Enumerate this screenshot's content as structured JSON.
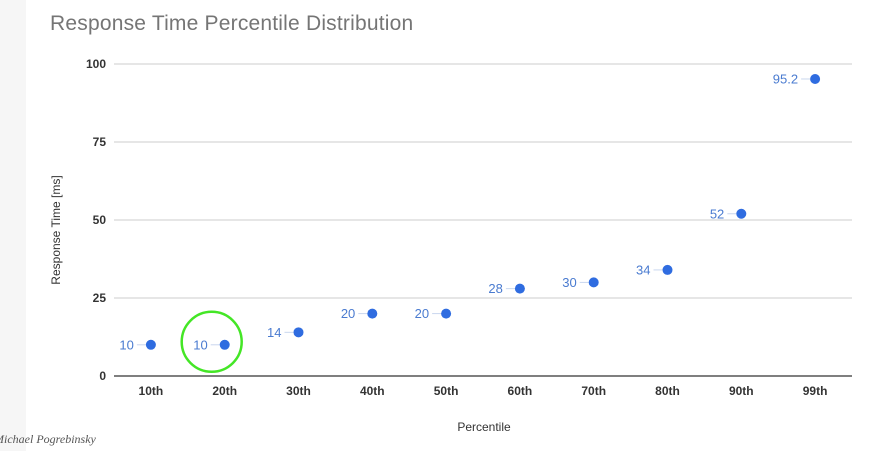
{
  "chart_data": {
    "type": "scatter",
    "title": "Response Time Percentile Distribution",
    "xlabel": "Percentile",
    "ylabel": "Response Time [ms]",
    "categories": [
      "10th",
      "20th",
      "30th",
      "40th",
      "50th",
      "60th",
      "70th",
      "80th",
      "90th",
      "99th"
    ],
    "values": [
      10,
      10,
      14,
      20,
      20,
      28,
      30,
      34,
      52,
      95.2
    ],
    "data_labels": [
      "10",
      "10",
      "14",
      "20",
      "20",
      "28",
      "30",
      "34",
      "52",
      "95.2"
    ],
    "ylim": [
      0,
      100
    ],
    "yticks": [
      0,
      25,
      50,
      75,
      100
    ],
    "ytick_labels": [
      "0",
      "25",
      "50",
      "75",
      "100"
    ],
    "grid": true,
    "legend": false,
    "point_color": "#2f6ce0",
    "label_color": "#4a7bd0",
    "highlight": {
      "category": "20th",
      "shape": "circle",
      "color": "#44e626"
    }
  },
  "credit": "Michael Pogrebinsky"
}
